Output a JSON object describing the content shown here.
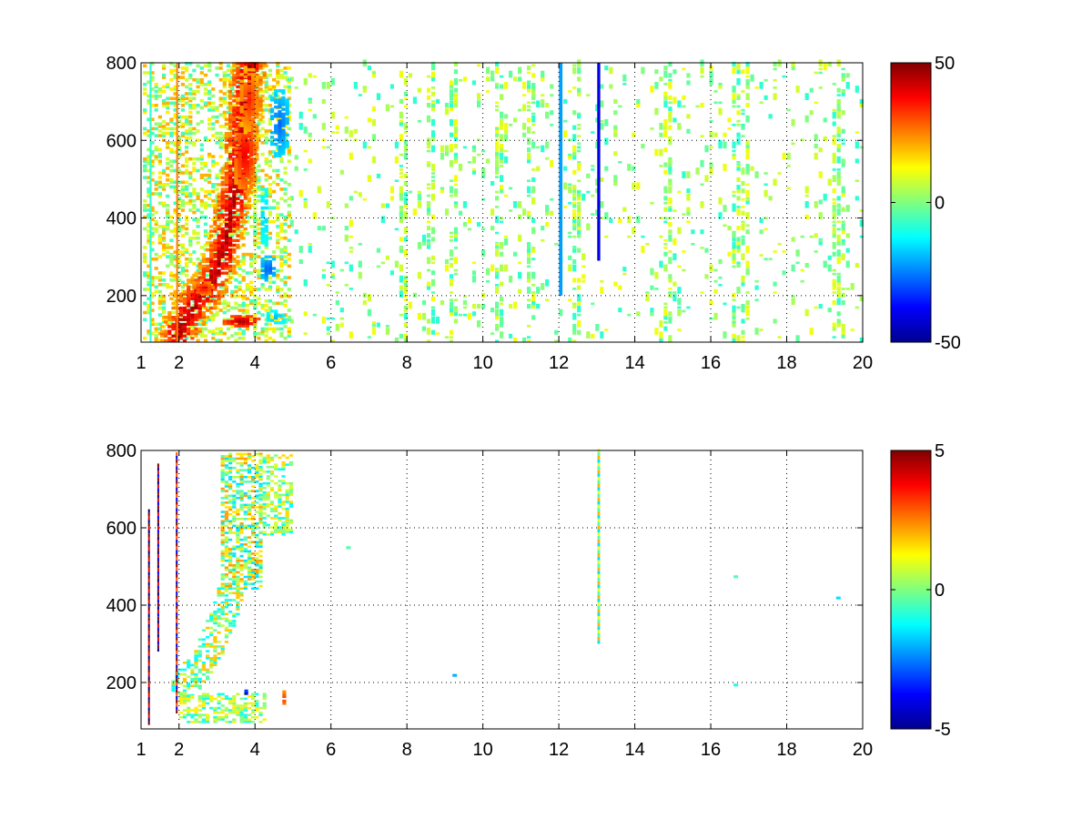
{
  "figure": {
    "background": "#ffffff",
    "panel_count": 2
  },
  "colormap": "jet",
  "chart_data": [
    {
      "type": "heatmap",
      "title": "",
      "xlabel": "",
      "ylabel": "",
      "xlim": [
        1,
        20
      ],
      "ylim": [
        80,
        800
      ],
      "xticks": [
        1,
        2,
        4,
        6,
        8,
        10,
        12,
        14,
        16,
        18,
        20
      ],
      "yticks": [
        200,
        400,
        600,
        800
      ],
      "grid": true,
      "colorbar": {
        "range": [
          -50,
          50
        ],
        "ticks": [
          50,
          0,
          -50
        ]
      },
      "features": [
        {
          "kind": "ridge",
          "value": 45,
          "points": [
            [
              1.9,
              100
            ],
            [
              2.4,
              180
            ],
            [
              2.8,
              230
            ],
            [
              3.1,
              300
            ],
            [
              3.3,
              400
            ],
            [
              3.5,
              500
            ],
            [
              3.6,
              600
            ],
            [
              3.7,
              700
            ],
            [
              3.8,
              790
            ]
          ],
          "width": [
            0.45,
            60
          ]
        },
        {
          "kind": "blob",
          "value": 48,
          "x": 3.6,
          "y": 130,
          "rx": 0.55,
          "ry": 18
        },
        {
          "kind": "blob",
          "value": 38,
          "x": 2.6,
          "y": 215,
          "rx": 0.35,
          "ry": 22
        },
        {
          "kind": "blob",
          "value": 40,
          "x": 3.7,
          "y": 560,
          "rx": 0.35,
          "ry": 110
        },
        {
          "kind": "blob",
          "value": 35,
          "x": 3.8,
          "y": 700,
          "rx": 0.3,
          "ry": 90
        },
        {
          "kind": "blob",
          "value": -28,
          "x": 4.6,
          "y": 640,
          "rx": 0.3,
          "ry": 90
        },
        {
          "kind": "blob",
          "value": -30,
          "x": 4.3,
          "y": 265,
          "rx": 0.25,
          "ry": 35
        },
        {
          "kind": "blob",
          "value": -20,
          "x": 4.5,
          "y": 140,
          "rx": 0.3,
          "ry": 20
        },
        {
          "kind": "blob",
          "value": -18,
          "x": 4.2,
          "y": 400,
          "rx": 0.15,
          "ry": 80
        },
        {
          "kind": "stripe",
          "value": -22,
          "x": 12.05,
          "y0": 200,
          "y1": 800,
          "w": 0.09
        },
        {
          "kind": "stripe",
          "value": -40,
          "x": 13.05,
          "y0": 290,
          "y1": 800,
          "w": 0.08
        },
        {
          "kind": "stripe",
          "value": 25,
          "x": 1.95,
          "y0": 80,
          "y1": 800,
          "w": 0.05
        },
        {
          "kind": "stripe",
          "value": -8,
          "x": 1.25,
          "y0": 80,
          "y1": 800,
          "w": 0.05
        }
      ],
      "noise": {
        "x_range": [
          4.8,
          20
        ],
        "density": 0.22,
        "values": [
          -8,
          -3,
          0,
          4,
          8,
          11
        ],
        "columns": [
          7.9,
          8.6,
          9.15,
          10.4,
          11.2,
          12.4,
          14.8,
          16.6,
          16.85,
          19.2,
          19.35
        ]
      }
    },
    {
      "type": "heatmap",
      "title": "",
      "xlabel": "",
      "ylabel": "",
      "xlim": [
        1,
        20
      ],
      "ylim": [
        80,
        800
      ],
      "xticks": [
        1,
        2,
        4,
        6,
        8,
        10,
        12,
        14,
        16,
        18,
        20
      ],
      "yticks": [
        200,
        400,
        600,
        800
      ],
      "grid": true,
      "colorbar": {
        "range": [
          -5,
          5
        ],
        "ticks": [
          5,
          0,
          -5
        ]
      },
      "features": [
        {
          "kind": "region",
          "x0": 3.1,
          "x1": 4.2,
          "y0": 440,
          "y1": 790,
          "density": 0.6,
          "values": [
            -1.5,
            -0.5,
            0.5,
            1.5,
            2.2
          ]
        },
        {
          "kind": "region",
          "x0": 4.1,
          "x1": 4.9,
          "y0": 580,
          "y1": 790,
          "density": 0.5,
          "values": [
            -1.2,
            0,
            0.8,
            1.6
          ]
        },
        {
          "kind": "band",
          "points": [
            [
              2.1,
              190
            ],
            [
              2.5,
              240
            ],
            [
              2.8,
              290
            ],
            [
              3.1,
              360
            ],
            [
              3.3,
              430
            ]
          ],
          "width": [
            0.35,
            40
          ],
          "density": 0.55,
          "values": [
            -1.2,
            -0.4,
            0.6,
            1.8
          ]
        },
        {
          "kind": "region",
          "x0": 2.0,
          "x1": 4.3,
          "y0": 95,
          "y1": 170,
          "density": 0.55,
          "values": [
            -1,
            0,
            0.6,
            1.4
          ]
        },
        {
          "kind": "blob",
          "value": -4.5,
          "x": 3.7,
          "y": 165,
          "rx": 0.08,
          "ry": 15
        },
        {
          "kind": "blob",
          "value": 3.5,
          "x": 4.7,
          "y": 155,
          "rx": 0.08,
          "ry": 25
        },
        {
          "kind": "stripe_alt",
          "x": 13.05,
          "y0": 300,
          "y1": 800,
          "w": 0.07,
          "values": [
            -1.5,
            2,
            -0.5,
            1
          ]
        },
        {
          "kind": "stripe_alt",
          "x": 1.45,
          "y0": 280,
          "y1": 760,
          "w": 0.04,
          "values": [
            -5,
            5,
            -4,
            4
          ]
        },
        {
          "kind": "stripe_alt",
          "x": 1.2,
          "y0": 90,
          "y1": 640,
          "w": 0.03,
          "values": [
            5,
            -5,
            4
          ]
        },
        {
          "kind": "stripe_alt",
          "x": 1.93,
          "y0": 120,
          "y1": 790,
          "w": 0.03,
          "values": [
            5,
            -4,
            3
          ]
        },
        {
          "kind": "dot",
          "value": -2,
          "x": 9.2,
          "y": 215
        },
        {
          "kind": "dot",
          "value": -1,
          "x": 16.6,
          "y": 190
        },
        {
          "kind": "dot",
          "value": -0.5,
          "x": 16.6,
          "y": 470
        },
        {
          "kind": "dot",
          "value": -1.5,
          "x": 19.3,
          "y": 415
        },
        {
          "kind": "dot",
          "value": -0.5,
          "x": 6.4,
          "y": 545
        }
      ]
    }
  ]
}
